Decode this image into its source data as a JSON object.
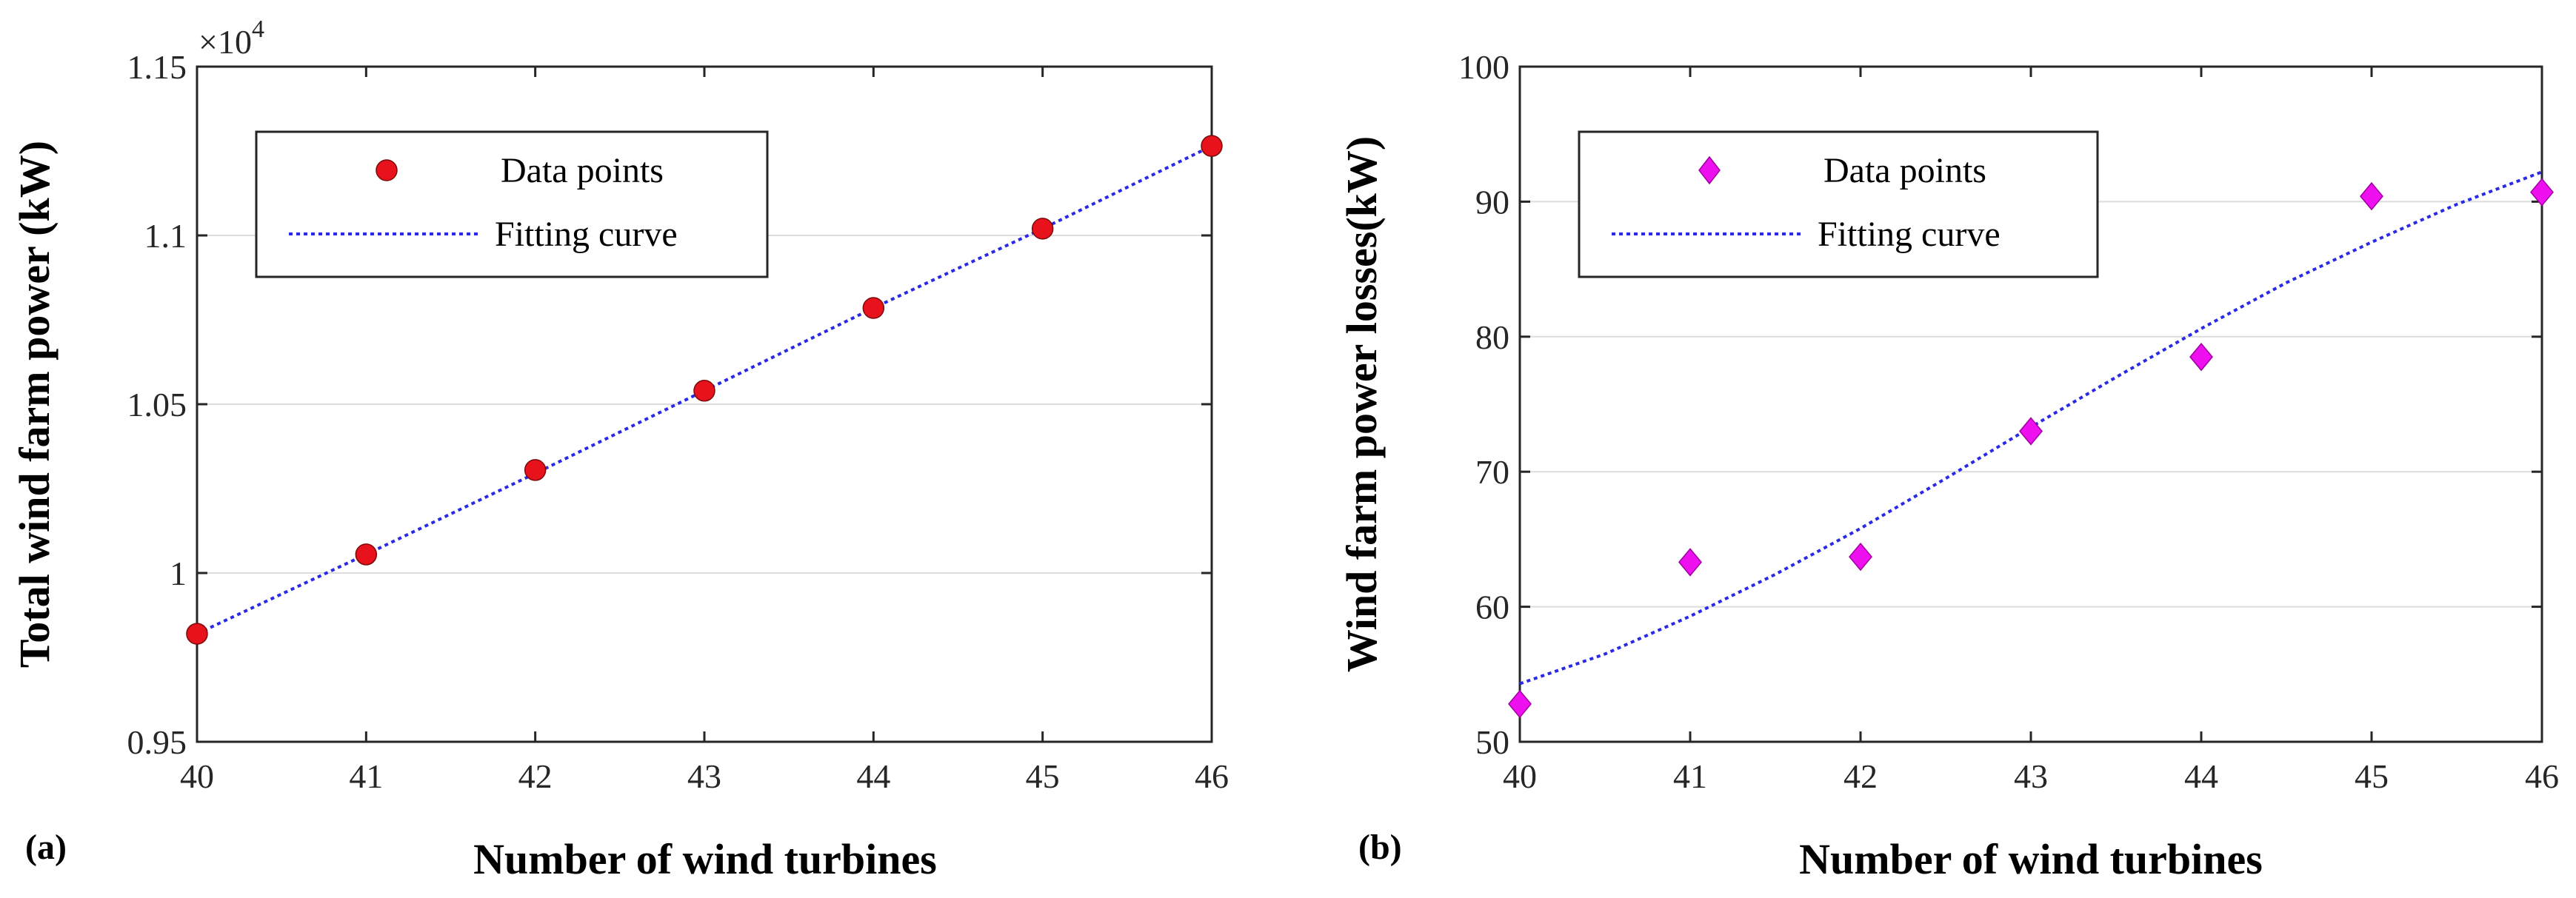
{
  "chart_data": [
    {
      "type": "scatter",
      "panel_label": "(a)",
      "xlabel": "Number of wind turbines",
      "ylabel": "Total wind farm power (kW)",
      "xlim": [
        40,
        46
      ],
      "ylim": [
        0.95,
        1.15
      ],
      "x_ticks": [
        40,
        41,
        42,
        43,
        44,
        45,
        46
      ],
      "x_tick_labels": [
        "40",
        "41",
        "42",
        "43",
        "44",
        "45",
        "46"
      ],
      "y_ticks": [
        0.95,
        1.0,
        1.05,
        1.1,
        1.15
      ],
      "y_tick_labels": [
        "0.95",
        "1",
        "1.05",
        "1.1",
        "1.15"
      ],
      "y_exponent_label": "×10",
      "y_exponent": "4",
      "grid": "horizontal",
      "legend_position": "top-left",
      "series": [
        {
          "name": "Data points",
          "kind": "marker",
          "marker": "circle",
          "color": "#e8121c",
          "x": [
            40,
            41,
            42,
            43,
            44,
            45,
            46
          ],
          "y": [
            0.982,
            1.0055,
            1.0305,
            1.054,
            1.0785,
            1.102,
            1.1265
          ]
        },
        {
          "name": "Fitting curve",
          "kind": "line",
          "style": "dotted",
          "color": "#2a2ae6",
          "x": [
            40,
            41,
            42,
            43,
            44,
            45,
            46
          ],
          "y": [
            0.982,
            1.0055,
            1.0295,
            1.054,
            1.0785,
            1.102,
            1.1265
          ]
        }
      ]
    },
    {
      "type": "scatter",
      "panel_label": "(b)",
      "xlabel": "Number of wind turbines",
      "ylabel": "Wind farm power losses(kW)",
      "xlim": [
        40,
        46
      ],
      "ylim": [
        50,
        100
      ],
      "x_ticks": [
        40,
        41,
        42,
        43,
        44,
        45,
        46
      ],
      "x_tick_labels": [
        "40",
        "41",
        "42",
        "43",
        "44",
        "45",
        "46"
      ],
      "y_ticks": [
        50,
        60,
        70,
        80,
        90,
        100
      ],
      "y_tick_labels": [
        "50",
        "60",
        "70",
        "80",
        "90",
        "100"
      ],
      "grid": "horizontal",
      "legend_position": "top-left",
      "series": [
        {
          "name": "Data points",
          "kind": "marker",
          "marker": "diamond",
          "color": "#ee10ee",
          "x": [
            40,
            41,
            42,
            43,
            44,
            45,
            46
          ],
          "y": [
            52.8,
            63.3,
            63.7,
            73.0,
            78.5,
            90.4,
            90.7
          ]
        },
        {
          "name": "Fitting curve",
          "kind": "line",
          "style": "dotted",
          "color": "#2a2ae6",
          "x": [
            40,
            40.5,
            41,
            41.5,
            42,
            42.5,
            43,
            43.5,
            44,
            44.5,
            45,
            45.5,
            46
          ],
          "y": [
            54.3,
            56.5,
            59.3,
            62.4,
            65.8,
            69.5,
            73.3,
            77.0,
            80.6,
            84.0,
            87.0,
            89.8,
            92.2
          ]
        }
      ]
    }
  ]
}
